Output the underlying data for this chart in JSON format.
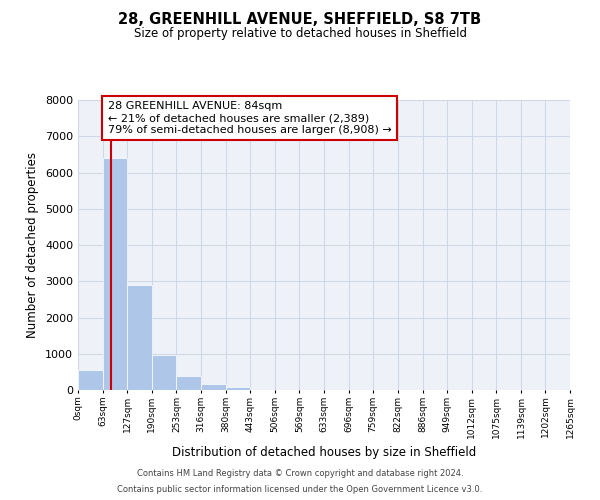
{
  "title": "28, GREENHILL AVENUE, SHEFFIELD, S8 7TB",
  "subtitle": "Size of property relative to detached houses in Sheffield",
  "xlabel": "Distribution of detached houses by size in Sheffield",
  "ylabel": "Number of detached properties",
  "bin_edges": [
    0,
    63,
    127,
    190,
    253,
    316,
    380,
    443,
    506,
    569,
    633,
    696,
    759,
    822,
    886,
    949,
    1012,
    1075,
    1139,
    1202,
    1265
  ],
  "bar_heights": [
    550,
    6400,
    2900,
    975,
    375,
    175,
    75,
    0,
    0,
    0,
    0,
    0,
    0,
    0,
    0,
    0,
    0,
    0,
    0,
    0
  ],
  "bar_color": "#aec6e8",
  "property_line_x": 84,
  "property_line_color": "#cc0000",
  "ylim": [
    0,
    8000
  ],
  "yticks": [
    0,
    1000,
    2000,
    3000,
    4000,
    5000,
    6000,
    7000,
    8000
  ],
  "annotation_title": "28 GREENHILL AVENUE: 84sqm",
  "annotation_line2": "← 21% of detached houses are smaller (2,389)",
  "annotation_line3": "79% of semi-detached houses are larger (8,908) →",
  "annotation_box_color": "#cc0000",
  "grid_color": "#d0d8e8",
  "background_color": "#eef2f8",
  "footnote1": "Contains HM Land Registry data © Crown copyright and database right 2024.",
  "footnote2": "Contains public sector information licensed under the Open Government Licence v3.0.",
  "tick_labels": [
    "0sqm",
    "63sqm",
    "127sqm",
    "190sqm",
    "253sqm",
    "316sqm",
    "380sqm",
    "443sqm",
    "506sqm",
    "569sqm",
    "633sqm",
    "696sqm",
    "759sqm",
    "822sqm",
    "886sqm",
    "949sqm",
    "1012sqm",
    "1075sqm",
    "1139sqm",
    "1202sqm",
    "1265sqm"
  ]
}
